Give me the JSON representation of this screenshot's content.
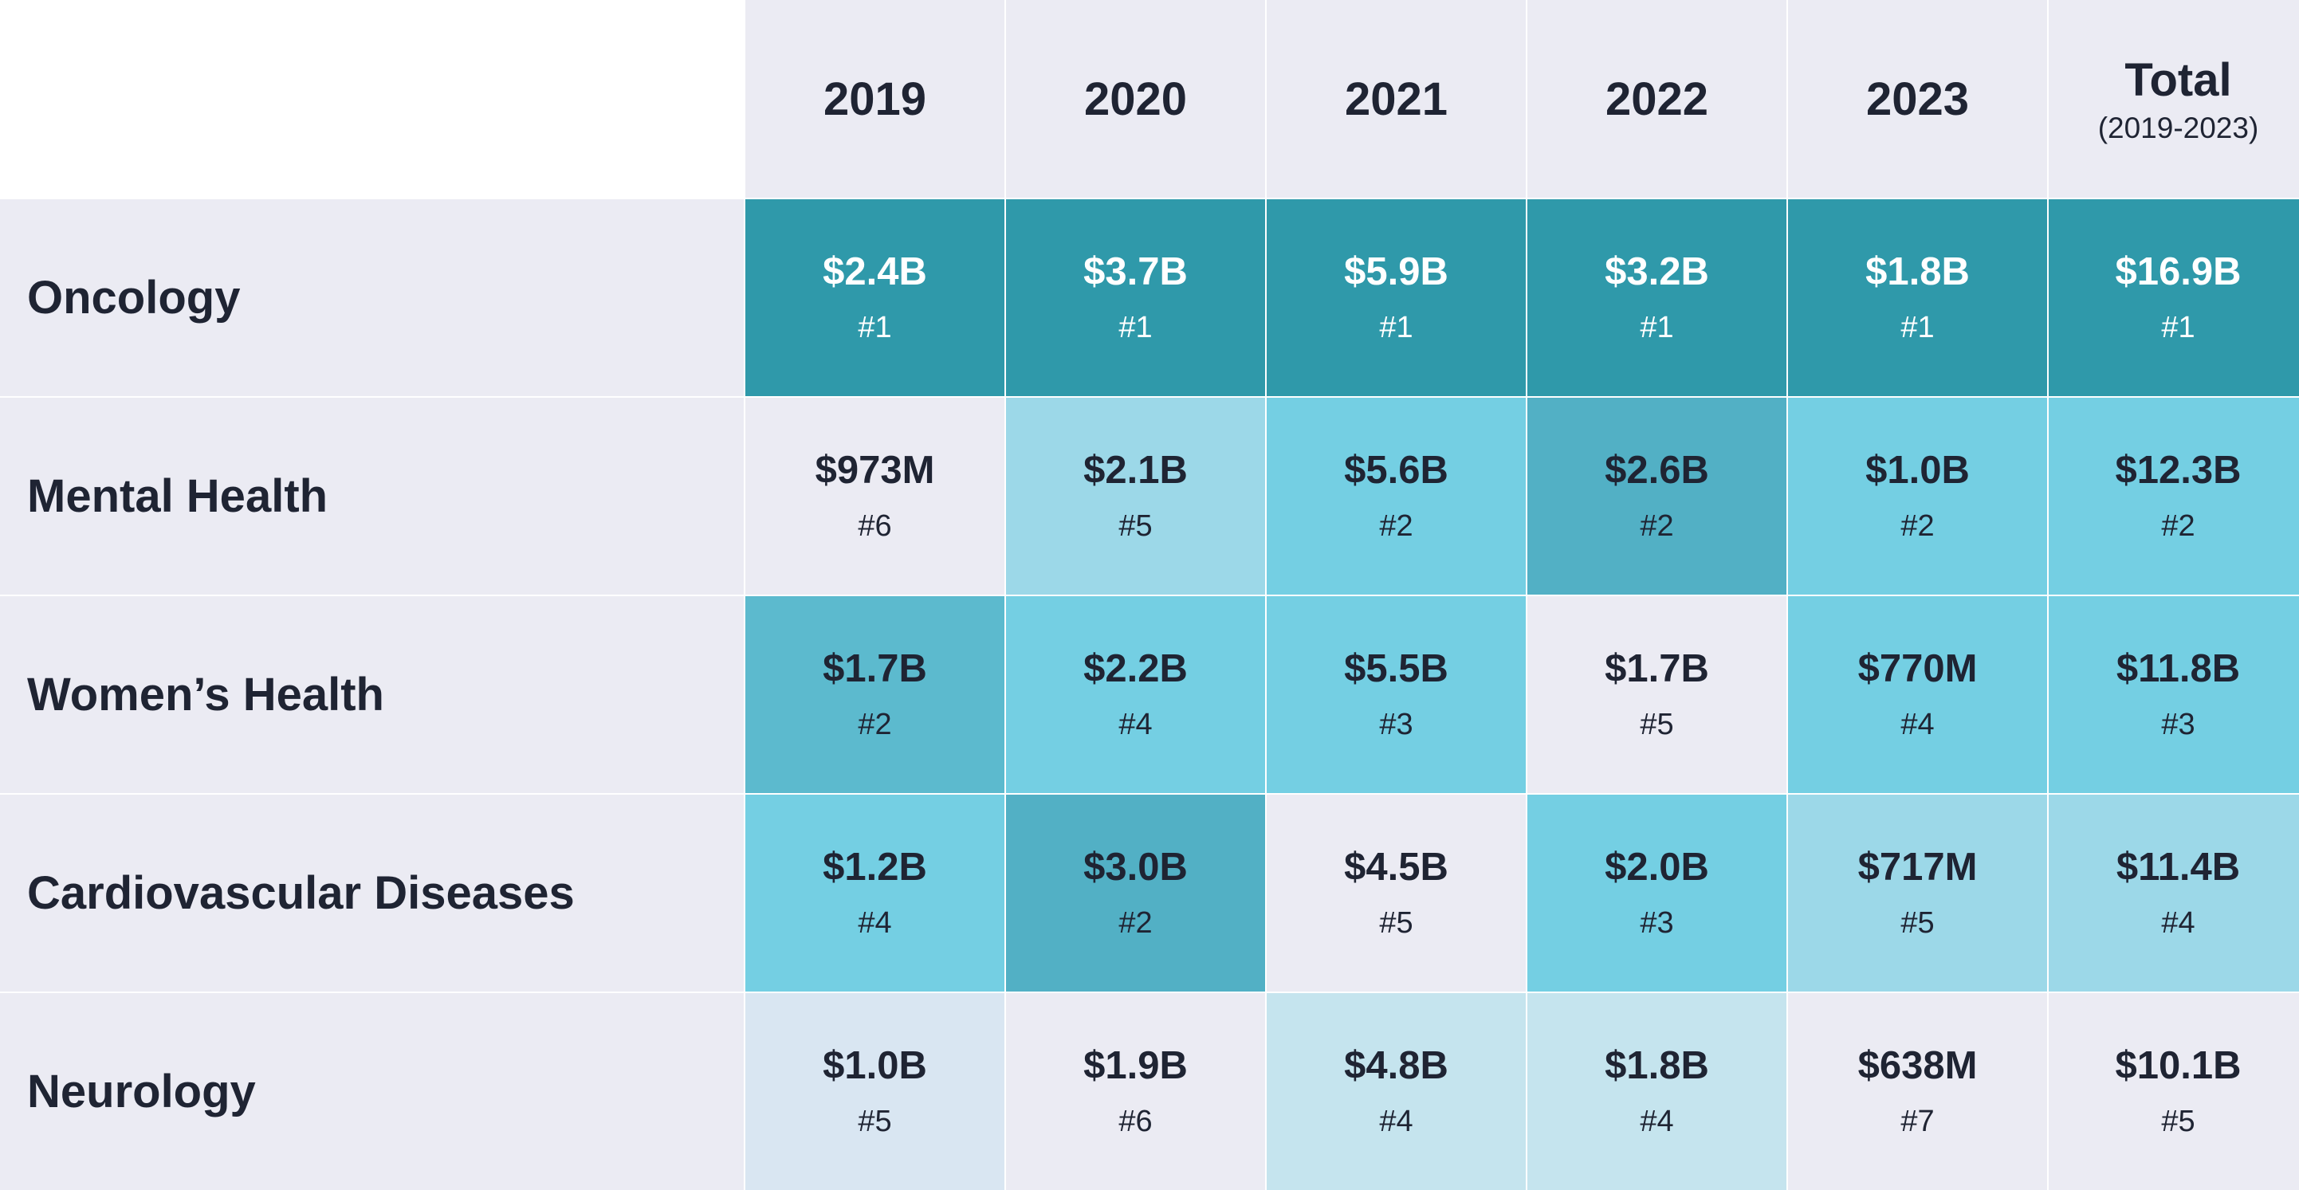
{
  "chart_data": {
    "type": "heatmap",
    "columns": [
      {
        "label": "2019"
      },
      {
        "label": "2020"
      },
      {
        "label": "2021"
      },
      {
        "label": "2022"
      },
      {
        "label": "2023"
      },
      {
        "label": "Total",
        "sublabel": "(2019-2023)"
      }
    ],
    "rows": [
      {
        "label": "Oncology",
        "cells": [
          {
            "value": "$2.4B",
            "rank": "#1",
            "color": "#2f99aa",
            "text_color": "#ffffff"
          },
          {
            "value": "$3.7B",
            "rank": "#1",
            "color": "#2f99aa",
            "text_color": "#ffffff"
          },
          {
            "value": "$5.9B",
            "rank": "#1",
            "color": "#2f99aa",
            "text_color": "#ffffff"
          },
          {
            "value": "$3.2B",
            "rank": "#1",
            "color": "#2f99aa",
            "text_color": "#ffffff"
          },
          {
            "value": "$1.8B",
            "rank": "#1",
            "color": "#2f99aa",
            "text_color": "#ffffff"
          },
          {
            "value": "$16.9B",
            "rank": "#1",
            "color": "#2f99aa",
            "text_color": "#ffffff"
          }
        ]
      },
      {
        "label": "Mental Health",
        "cells": [
          {
            "value": "$973M",
            "rank": "#6",
            "color": "#ebebf3",
            "text_color": "#1f2433"
          },
          {
            "value": "$2.1B",
            "rank": "#5",
            "color": "#9cd8e8",
            "text_color": "#1f2433"
          },
          {
            "value": "$5.6B",
            "rank": "#2",
            "color": "#74cfe3",
            "text_color": "#1f2433"
          },
          {
            "value": "$2.6B",
            "rank": "#2",
            "color": "#52b0c5",
            "text_color": "#1f2433"
          },
          {
            "value": "$1.0B",
            "rank": "#2",
            "color": "#74cfe3",
            "text_color": "#1f2433"
          },
          {
            "value": "$12.3B",
            "rank": "#2",
            "color": "#74cfe3",
            "text_color": "#1f2433"
          }
        ]
      },
      {
        "label": "Women’s Health",
        "cells": [
          {
            "value": "$1.7B",
            "rank": "#2",
            "color": "#5cbace",
            "text_color": "#1f2433"
          },
          {
            "value": "$2.2B",
            "rank": "#4",
            "color": "#74cfe3",
            "text_color": "#1f2433"
          },
          {
            "value": "$5.5B",
            "rank": "#3",
            "color": "#74cfe3",
            "text_color": "#1f2433"
          },
          {
            "value": "$1.7B",
            "rank": "#5",
            "color": "#ebebf3",
            "text_color": "#1f2433"
          },
          {
            "value": "$770M",
            "rank": "#4",
            "color": "#74cfe3",
            "text_color": "#1f2433"
          },
          {
            "value": "$11.8B",
            "rank": "#3",
            "color": "#74cfe3",
            "text_color": "#1f2433"
          }
        ]
      },
      {
        "label": "Cardiovascular Diseases",
        "cells": [
          {
            "value": "$1.2B",
            "rank": "#4",
            "color": "#74cfe3",
            "text_color": "#1f2433"
          },
          {
            "value": "$3.0B",
            "rank": "#2",
            "color": "#52b0c5",
            "text_color": "#1f2433"
          },
          {
            "value": "$4.5B",
            "rank": "#5",
            "color": "#ebebf3",
            "text_color": "#1f2433"
          },
          {
            "value": "$2.0B",
            "rank": "#3",
            "color": "#74cfe3",
            "text_color": "#1f2433"
          },
          {
            "value": "$717M",
            "rank": "#5",
            "color": "#9cd8e8",
            "text_color": "#1f2433"
          },
          {
            "value": "$11.4B",
            "rank": "#4",
            "color": "#9cd8e8",
            "text_color": "#1f2433"
          }
        ]
      },
      {
        "label": "Neurology",
        "cells": [
          {
            "value": "$1.0B",
            "rank": "#5",
            "color": "#d9e6f2",
            "text_color": "#1f2433"
          },
          {
            "value": "$1.9B",
            "rank": "#6",
            "color": "#ebebf3",
            "text_color": "#1f2433"
          },
          {
            "value": "$4.8B",
            "rank": "#4",
            "color": "#c5e4ee",
            "text_color": "#1f2433"
          },
          {
            "value": "$1.8B",
            "rank": "#4",
            "color": "#c5e4ee",
            "text_color": "#1f2433"
          },
          {
            "value": "$638M",
            "rank": "#7",
            "color": "#ebebf3",
            "text_color": "#1f2433"
          },
          {
            "value": "$10.1B",
            "rank": "#5",
            "color": "#ebebf3",
            "text_color": "#1f2433"
          }
        ]
      }
    ]
  }
}
